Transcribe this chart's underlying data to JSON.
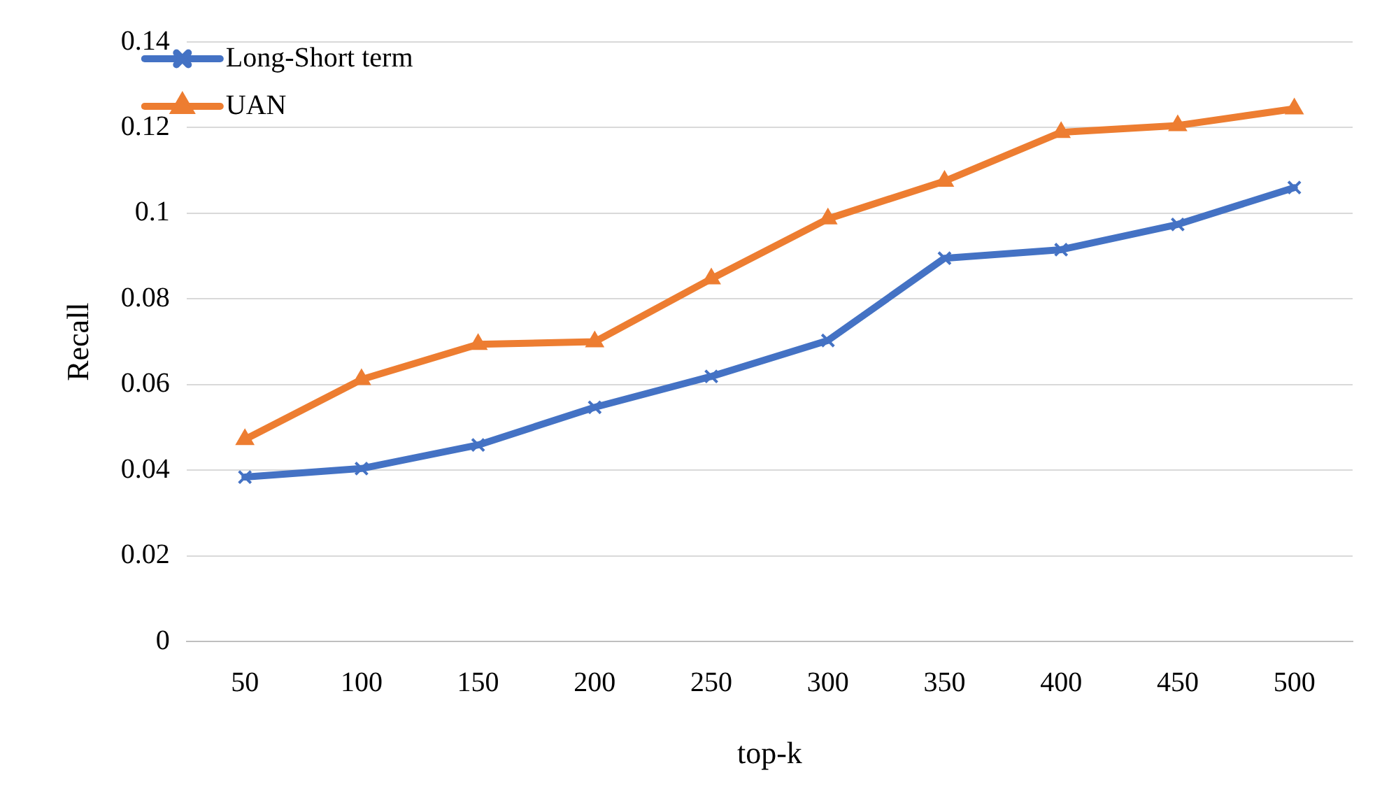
{
  "chart_data": {
    "type": "line",
    "xlabel": "top-k",
    "ylabel": "Recall",
    "categories": [
      "50",
      "100",
      "150",
      "200",
      "250",
      "300",
      "350",
      "400",
      "450",
      "500"
    ],
    "series": [
      {
        "name": "Long-Short term",
        "color": "#4472c4",
        "marker": "cross",
        "values": [
          0.0384,
          0.0404,
          0.0459,
          0.0547,
          0.0619,
          0.0703,
          0.0895,
          0.0915,
          0.0974,
          0.106
        ]
      },
      {
        "name": "UAN",
        "color": "#ed7d31",
        "marker": "triangle",
        "values": [
          0.0472,
          0.0612,
          0.0694,
          0.07,
          0.0847,
          0.0987,
          0.1075,
          0.1189,
          0.1205,
          0.1244
        ]
      }
    ],
    "ylim": [
      0,
      0.14
    ],
    "yticks": [
      0,
      0.02,
      0.04,
      0.06,
      0.08,
      0.1,
      0.12,
      0.14
    ],
    "grid": "y",
    "legend": "top left",
    "line_style": "solid"
  }
}
